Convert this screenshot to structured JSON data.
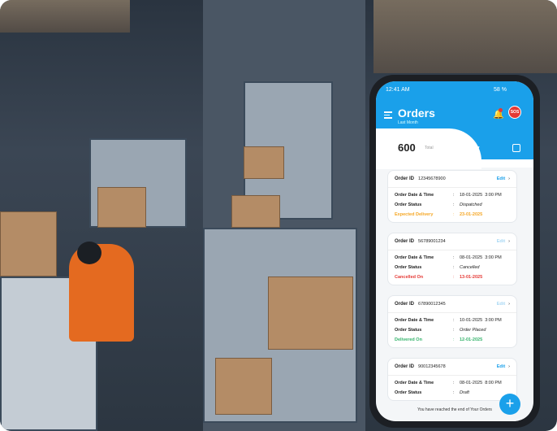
{
  "status_bar": {
    "time": "12:41 AM",
    "battery": "58 %"
  },
  "header": {
    "title": "Orders",
    "subtitle": "Last Month",
    "sos": "SOS",
    "notification_count": "1"
  },
  "summary": {
    "total": "600",
    "total_label": "Total",
    "filter": "All"
  },
  "labels": {
    "order_id": "Order ID",
    "date_time": "Order Date & Time",
    "status": "Order Status",
    "edit": "Edit",
    "sep": ":"
  },
  "orders": [
    {
      "id": "12345678900",
      "date": "18-01-2025",
      "time": "3:00 PM",
      "status": "Dispatched",
      "extra_label": "Expected Delivery",
      "extra_value": "23-01-2025",
      "extra_color": "#f5a623",
      "edit_enabled": true
    },
    {
      "id": "56789001234",
      "date": "08-01-2025",
      "time": "3:00 PM",
      "status": "Cancelled",
      "extra_label": "Cancelled On",
      "extra_value": "13-01-2025",
      "extra_color": "#e53935",
      "edit_enabled": false
    },
    {
      "id": "67890012345",
      "date": "10-01-2025",
      "time": "3:00 PM",
      "status": "Order Placed",
      "extra_label": "Delivered On",
      "extra_value": "12-01-2025",
      "extra_color": "#34b36b",
      "edit_enabled": false
    },
    {
      "id": "90012345678",
      "date": "08-01-2025",
      "time": "8:00 PM",
      "status": "Draft",
      "edit_enabled": true
    }
  ],
  "footer": {
    "end_message": "You have reached the end of Your Orders"
  },
  "colors": {
    "primary": "#1aa0ea",
    "sos": "#e53935"
  }
}
